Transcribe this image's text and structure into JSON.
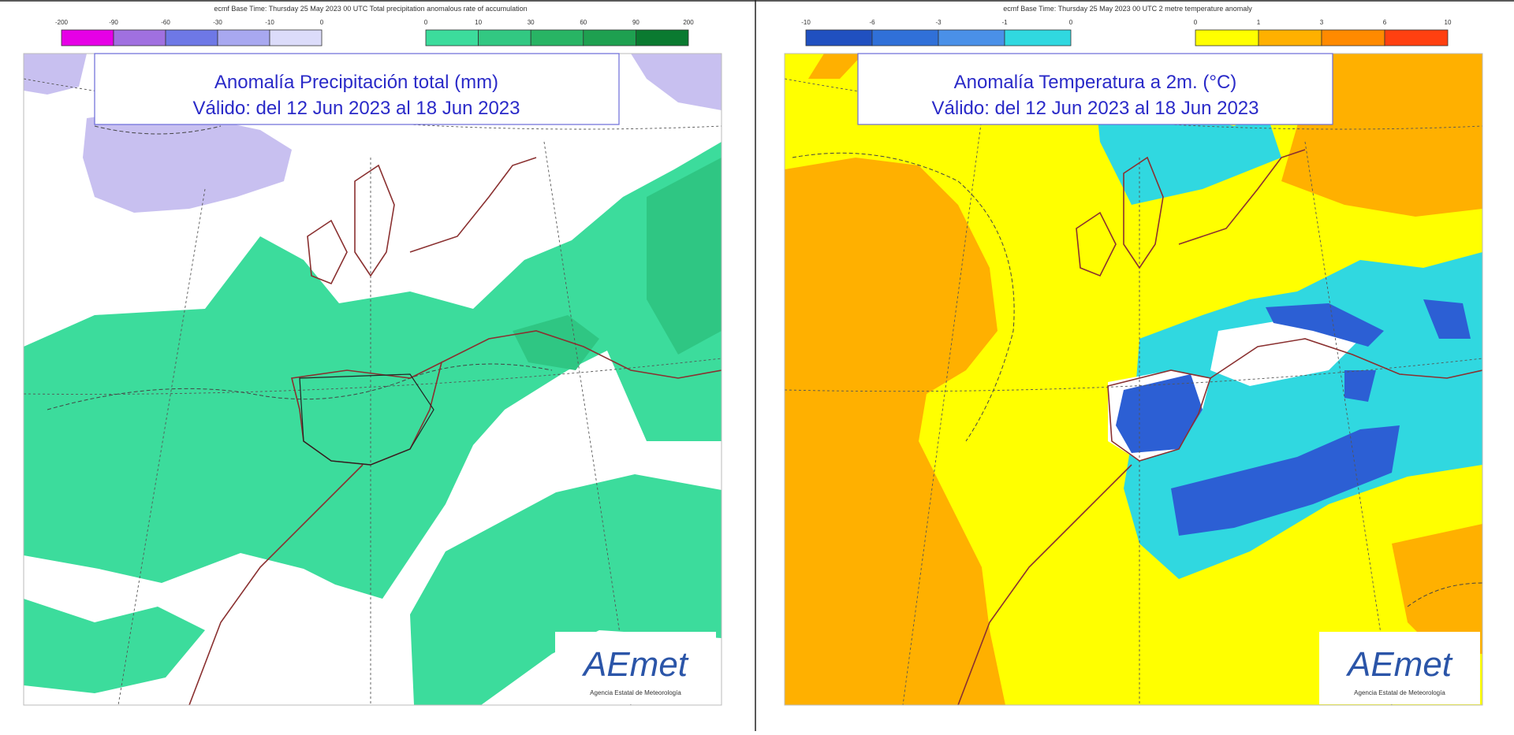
{
  "panels": [
    {
      "header": "ecmf  Base Time: Thursday 25 May 2023 00 UTC Total precipitation anomalous rate of accumulation",
      "negative_scale": [
        "-200",
        "-90",
        "-60",
        "-30",
        "-10",
        "0"
      ],
      "positive_scale": [
        "0",
        "10",
        "30",
        "60",
        "90",
        "200"
      ],
      "title": [
        "Anomalía Precipitación total (mm)",
        "Válido: del 12 Jun 2023 al 18 Jun 2023"
      ],
      "logo": {
        "name": "AEmet",
        "subtitle": "Agencia Estatal de Meteorología"
      }
    },
    {
      "header": "ecmf  Base Time: Thursday 25 May 2023 00 UTC 2 metre temperature anomaly",
      "negative_scale": [
        "-10",
        "-6",
        "-3",
        "-1",
        "0"
      ],
      "positive_scale": [
        "0",
        "1",
        "3",
        "6",
        "10"
      ],
      "title": [
        "Anomalía Temperatura a 2m. (°C)",
        "Válido: del 12 Jun 2023 al 18 Jun 2023"
      ],
      "logo": {
        "name": "AEmet",
        "subtitle": "Agencia Estatal de Meteorología"
      }
    }
  ]
}
